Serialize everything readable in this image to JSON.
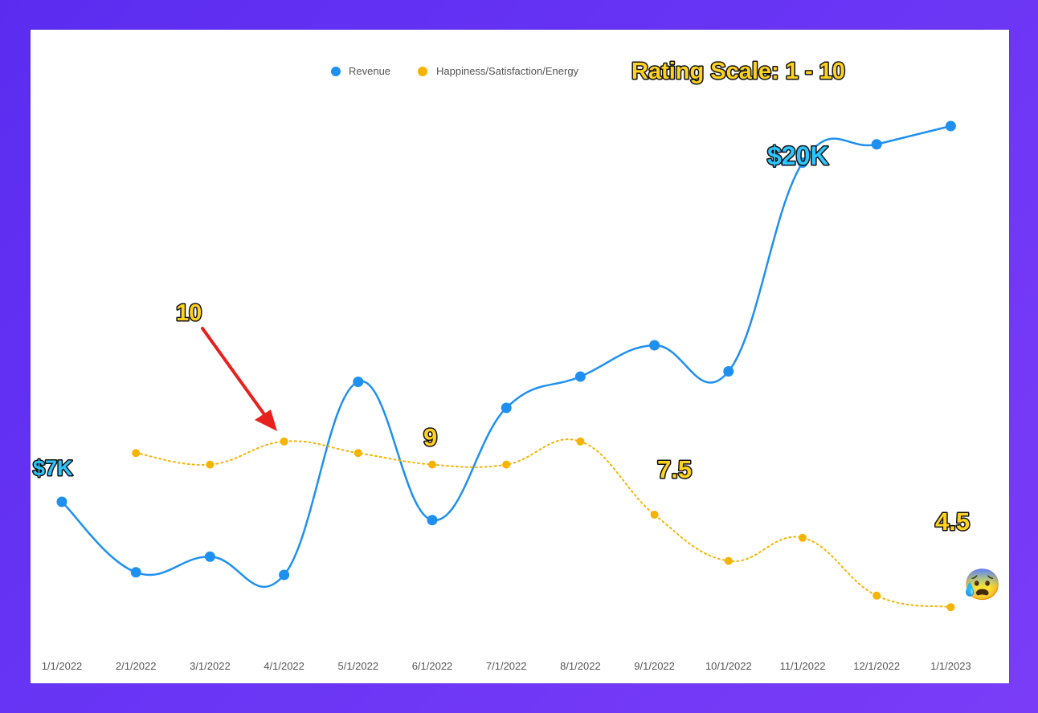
{
  "chart_data": {
    "type": "line",
    "categories": [
      "1/1/2022",
      "2/1/2022",
      "3/1/2022",
      "4/1/2022",
      "5/1/2022",
      "6/1/2022",
      "7/1/2022",
      "8/1/2022",
      "9/1/2022",
      "10/1/2022",
      "11/1/2022",
      "12/1/2022",
      "1/1/2023"
    ],
    "series": [
      {
        "name": "Revenue",
        "color": "#1e90f0",
        "values": [
          7,
          4.3,
          4.9,
          4.2,
          11.6,
          6.3,
          10.6,
          11.8,
          13.0,
          12.0,
          20.0,
          20.7,
          21.4
        ]
      },
      {
        "name": "Happiness/Satisfaction/Energy",
        "color": "#f5b400",
        "values": [
          null,
          9.1,
          8.8,
          9.4,
          9.1,
          8.8,
          8.8,
          9.4,
          7.5,
          6.3,
          6.9,
          5.4,
          5.1
        ]
      }
    ],
    "legend": "top"
  },
  "annotations": {
    "rating_scale": "Rating Scale: 1 - 10",
    "label_7k": "$7K",
    "label_20k": "$20K",
    "label_10": "10",
    "label_9": "9",
    "label_7_5": "7.5",
    "label_4_5": "4.5",
    "emoji": "😰"
  },
  "colors": {
    "revenue": "#1e90f0",
    "happiness": "#f5b400",
    "callout_yellow": "#ffd21f",
    "callout_cyan": "#2ec5ff",
    "arrow": "#e8201e"
  }
}
